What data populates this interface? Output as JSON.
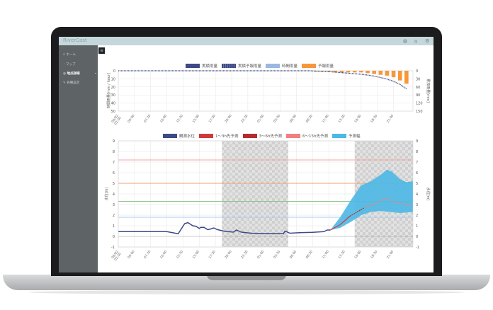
{
  "app": {
    "title": "RiverCast",
    "header_icons": [
      "globe-icon",
      "bell-icon",
      "gear-icon"
    ]
  },
  "sidebar": {
    "items": [
      {
        "label": "ホーム",
        "icon": "home-icon"
      },
      {
        "label": "マップ",
        "icon": "map-icon"
      },
      {
        "label": "地点詳細",
        "icon": "info-icon",
        "active": true
      },
      {
        "label": "各種設定",
        "icon": "wrench-icon"
      }
    ]
  },
  "colors": {
    "observed": "#3d4a85",
    "fc_1_3": "#d0393b",
    "fc_3_6": "#b52b2b",
    "fc_6_15": "#f08080",
    "band": "#4bb8e6",
    "rain_obs": "#3d4a85",
    "rain_fc": "#f7973a",
    "rain_hourly": "#9ab8e0"
  },
  "chart_data": [
    {
      "type": "bar",
      "legend": [
        "実績雨量",
        "実績予報雨量",
        "時間雨量",
        "予報雨量"
      ],
      "legend_position": "top",
      "ylabel_left": "時間雨量[mm / hour]",
      "ylabel_right": "累加雨量[mm]",
      "ylim_left": [
        0,
        50
      ],
      "ylim_right": [
        0,
        150
      ],
      "yticks_left": [
        0,
        10,
        20,
        30,
        40,
        50
      ],
      "yticks_right": [
        0,
        30,
        60,
        90,
        120,
        150
      ],
      "y_inverted": true,
      "grid": true,
      "xticks": [
        "06/02 02:30",
        "05:00",
        "07:30",
        "10:00",
        "12:30",
        "15:00",
        "17:30",
        "20:00",
        "22:30",
        "01:00",
        "03:30",
        "06:00",
        "08:30",
        "11:00",
        "13:30",
        "16:00",
        "18:30",
        "21:00"
      ],
      "forecast_hourly": {
        "x": [
          "06-03 09:00",
          "06-03 10:00",
          "06-03 11:00",
          "06-03 12:00",
          "06-03 13:00",
          "06-03 14:00",
          "06-03 15:00",
          "06-03 16:00",
          "06-03 17:00",
          "06-03 18:00",
          "06-03 19:00",
          "06-03 20:00",
          "06-03 21:00",
          "06-03 22:00",
          "06-03 23:00"
        ],
        "values": [
          1,
          1,
          1,
          2,
          2,
          2,
          2,
          2,
          3,
          4,
          5,
          6,
          8,
          12,
          16
        ]
      },
      "cumulative": {
        "x": [
          "06-02 02:30",
          "06-03 08:00",
          "06-03 09:00",
          "06-03 10:00",
          "06-03 11:00",
          "06-03 12:00",
          "06-03 13:00",
          "06-03 14:00",
          "06-03 15:00",
          "06-03 16:00",
          "06-03 17:00",
          "06-03 18:00",
          "06-03 19:00",
          "06-03 20:00",
          "06-03 21:00",
          "06-03 22:00",
          "06-03 23:00"
        ],
        "values": [
          0,
          0,
          1,
          2,
          3,
          5,
          7,
          9,
          11,
          13,
          16,
          20,
          25,
          31,
          39,
          51,
          67
        ]
      }
    },
    {
      "type": "line",
      "legend": [
        "観測水位",
        "1～3h先予測",
        "3～6h先予測",
        "6～15h先予測",
        "予測幅"
      ],
      "legend_position": "top",
      "ylabel_left": "水位[m]",
      "ylabel_right": "水位[m]",
      "ylim": [
        -1,
        9
      ],
      "yticks": [
        -1,
        0,
        1,
        2,
        3,
        4,
        5,
        6,
        7,
        8,
        9
      ],
      "grid": true,
      "thresholds": [
        {
          "value": 7.2,
          "color": "#f5a3a3"
        },
        {
          "value": 5.0,
          "color": "#f0a070"
        },
        {
          "value": 3.3,
          "color": "#8cc68c"
        },
        {
          "value": 1.8,
          "color": "#a8cdf0"
        }
      ],
      "night_shading": [
        [
          "06-02 18:30",
          "06-03 04:45"
        ],
        [
          "06-03 15:00",
          "06-04 00:00"
        ]
      ],
      "observed": {
        "x": [
          "06-02 02:30",
          "06-02 10:00",
          "06-02 11:45",
          "06-02 12:45",
          "06-02 13:15",
          "06-02 14:00",
          "06-02 14:30",
          "06-02 15:00",
          "06-02 15:15",
          "06-02 15:45",
          "06-02 16:15",
          "06-02 16:30",
          "06-02 17:15",
          "06-02 17:45",
          "06-02 18:45",
          "06-02 20:15",
          "06-02 20:45",
          "06-02 21:30",
          "06-02 23:00",
          "06-03 01:00",
          "06-03 04:00",
          "06-03 04:15",
          "06-03 05:00",
          "06-03 06:30",
          "06-03 08:30",
          "06-03 10:15",
          "06-03 10:45",
          "06-03 11:15"
        ],
        "values": [
          0.45,
          0.45,
          0.25,
          1.2,
          1.3,
          1.0,
          0.95,
          0.75,
          0.85,
          0.85,
          0.65,
          0.65,
          0.8,
          0.65,
          0.5,
          0.4,
          0.6,
          0.4,
          0.3,
          0.27,
          0.27,
          0.5,
          0.3,
          0.35,
          0.38,
          0.45,
          0.6,
          0.6
        ]
      },
      "forecast": {
        "x": [
          "06-03 11:15",
          "06-03 12:45",
          "06-03 14:15",
          "06-03 16:30",
          "06-03 18:00",
          "06-03 19:45",
          "06-03 21:30",
          "06-03 23:00",
          "06-04 00:00"
        ],
        "values": [
          0.6,
          1.1,
          1.9,
          2.7,
          3.0,
          3.6,
          3.2,
          3.0,
          3.0
        ],
        "segments": [
          "fc_1_3",
          "fc_1_3",
          "fc_3_6",
          "fc_6_15",
          "fc_6_15",
          "fc_6_15",
          "fc_6_15",
          "fc_6_15"
        ]
      },
      "band_upper": {
        "x": [
          "06-03 11:15",
          "06-03 12:45",
          "06-03 14:30",
          "06-03 16:00",
          "06-03 17:30",
          "06-03 19:00",
          "06-03 20:00",
          "06-03 20:45",
          "06-03 22:00",
          "06-03 23:00",
          "06-04 00:00"
        ],
        "values": [
          0.6,
          1.8,
          3.5,
          4.8,
          5.2,
          5.8,
          6.3,
          6.1,
          5.4,
          5.1,
          5.2
        ]
      },
      "band_lower": {
        "x": [
          "06-03 11:15",
          "06-03 12:45",
          "06-03 14:30",
          "06-03 16:00",
          "06-03 17:30",
          "06-03 19:00",
          "06-03 20:30",
          "06-03 22:00",
          "06-04 00:00"
        ],
        "values": [
          0.6,
          0.8,
          1.4,
          2.0,
          2.3,
          2.4,
          2.3,
          2.2,
          2.3
        ]
      },
      "xticks": [
        "06/02 02:30",
        "05:00",
        "07:30",
        "10:00",
        "12:30",
        "15:00",
        "17:30",
        "20:00",
        "22:30",
        "01:00",
        "03:30",
        "06:00",
        "08:30",
        "11:00",
        "13:30",
        "16:00",
        "18:30",
        "21:00"
      ]
    }
  ]
}
